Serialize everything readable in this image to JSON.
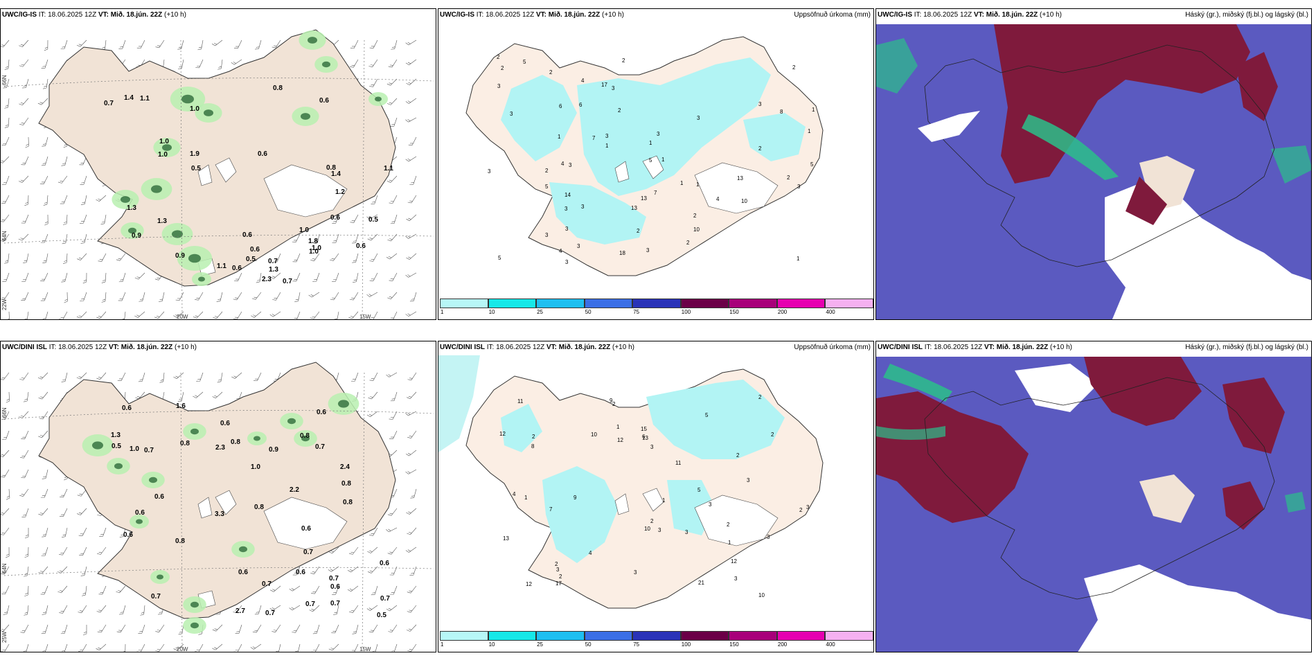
{
  "row1": {
    "wind": {
      "model": "UWC/IG-IS",
      "it": "IT: 18.06.2025 12Z",
      "vt": "VT: Mið. 18.jún. 22Z",
      "lead": "(+10 h)",
      "grid_labels": [
        "66N",
        "64N",
        "20W",
        "15W",
        "22W"
      ],
      "values": [
        "1.1",
        "0.6",
        "0.6",
        "0.7",
        "1.1",
        "0.9",
        "0.5",
        "1.3",
        "0.8",
        "1.0",
        "1.3",
        "0.6",
        "0.6",
        "0.7",
        "0.6",
        "1.3",
        "1.8",
        "1.0",
        "0.5",
        "1.4",
        "1.1",
        "1.2",
        "1.0",
        "0.5",
        "0.7",
        "0.9",
        "0.8",
        "2.3",
        "1.0",
        "1.9",
        "1.4",
        "1.0",
        "0.6",
        "0.6",
        "1.0"
      ]
    },
    "precip": {
      "model": "UWC/IG-IS",
      "it": "IT: 18.06.2025 12Z",
      "vt": "VT: Mið. 18.jún. 22Z",
      "lead": "(+10 h)",
      "title": "Uppsöfnuð úrkoma (mm)",
      "values": [
        "2",
        "2",
        "3",
        "2",
        "1",
        "2",
        "3",
        "3",
        "5",
        "4",
        "3",
        "1",
        "3",
        "5",
        "13",
        "7",
        "13",
        "3",
        "6",
        "3",
        "1",
        "2",
        "3",
        "4",
        "2",
        "7",
        "14",
        "10",
        "18",
        "17",
        "1",
        "4",
        "8",
        "3",
        "5",
        "1",
        "2",
        "1",
        "10",
        "3",
        "6",
        "3",
        "1",
        "2",
        "5",
        "3",
        "3",
        "2",
        "2",
        "3",
        "5",
        "3",
        "4",
        "2",
        "13",
        "3",
        "1",
        "1",
        "3",
        "2"
      ]
    },
    "cloud": {
      "model": "UWC/IG-IS",
      "it": "IT: 18.06.2025 12Z",
      "vt": "VT: Mið. 18.jún. 22Z",
      "lead": "(+10 h)",
      "title": "Háský (gr.), miðský (fj.bl.) og lágský (bl.)"
    }
  },
  "row2": {
    "wind": {
      "model": "UWC/DINI ISL",
      "it": "IT: 18.06.2025 12Z",
      "vt": "VT: Mið. 18.jún. 22Z",
      "lead": "(+10 h)",
      "grid_labels": [
        "66N",
        "64N",
        "20W",
        "15W",
        "25W"
      ],
      "values": [
        "1.0",
        "0.6",
        "1.3",
        "2.4",
        "2.7",
        "0.8",
        "0.7",
        "0.8",
        "0.6",
        "0.6",
        "0.7",
        "0.9",
        "0.6",
        "1.0",
        "0.7",
        "0.7",
        "0.6",
        "0.6",
        "0.7",
        "0.7",
        "0.5",
        "0.6",
        "2.2",
        "3.3",
        "0.8",
        "0.7",
        "0.6",
        "0.5",
        "0.8",
        "0.6",
        "0.7",
        "0.6",
        "0.6",
        "0.8",
        "0.8",
        "2.3",
        "1.6",
        "0.8",
        "0.7",
        "0.7"
      ]
    },
    "precip": {
      "model": "UWC/DINI ISL",
      "it": "IT: 18.06.2025 12Z",
      "vt": "VT: Mið. 18.jún. 22Z",
      "lead": "(+10 h)",
      "title": "Uppsöfnuð úrkoma (mm)",
      "values": [
        "1",
        "1",
        "2",
        "3",
        "2",
        "3",
        "2",
        "3",
        "4",
        "3",
        "6",
        "10",
        "12",
        "10",
        "11",
        "13",
        "12",
        "21",
        "10",
        "15",
        "9",
        "9",
        "12",
        "11",
        "5",
        "4",
        "8",
        "3",
        "2",
        "2",
        "13",
        "5",
        "3",
        "2",
        "3",
        "1",
        "7",
        "3",
        "17",
        "12",
        "2",
        "2",
        "1",
        "3",
        "3",
        "2",
        "2"
      ]
    },
    "cloud": {
      "model": "UWC/DINI ISL",
      "it": "IT: 18.06.2025 12Z",
      "vt": "VT: Mið. 18.jún. 22Z",
      "lead": "(+10 h)",
      "title": "Háský (gr.), miðský (fj.bl.) og lágský (bl.)"
    }
  },
  "legend": {
    "ticks": [
      "1",
      "10",
      "25",
      "50",
      "75",
      "100",
      "150",
      "200",
      "400"
    ],
    "colors": [
      "#b7f7f7",
      "#17e8e8",
      "#1fbff0",
      "#3b6fe6",
      "#2a33b8",
      "#6b0047",
      "#a8007a",
      "#e600b0",
      "#f5b0f0"
    ]
  },
  "colors": {
    "land": "#f1e3d6",
    "precip_land": "#fbeee4",
    "precip_fill": "#b2f4f4",
    "green_light": "#b8f0b0",
    "green_dark": "#1a5a2a",
    "cloud_high": "#7f1a3c",
    "cloud_mid": "#5b5ac0",
    "cloud_low": "#ffffff",
    "cloud_teal": "#2bbf8a"
  }
}
